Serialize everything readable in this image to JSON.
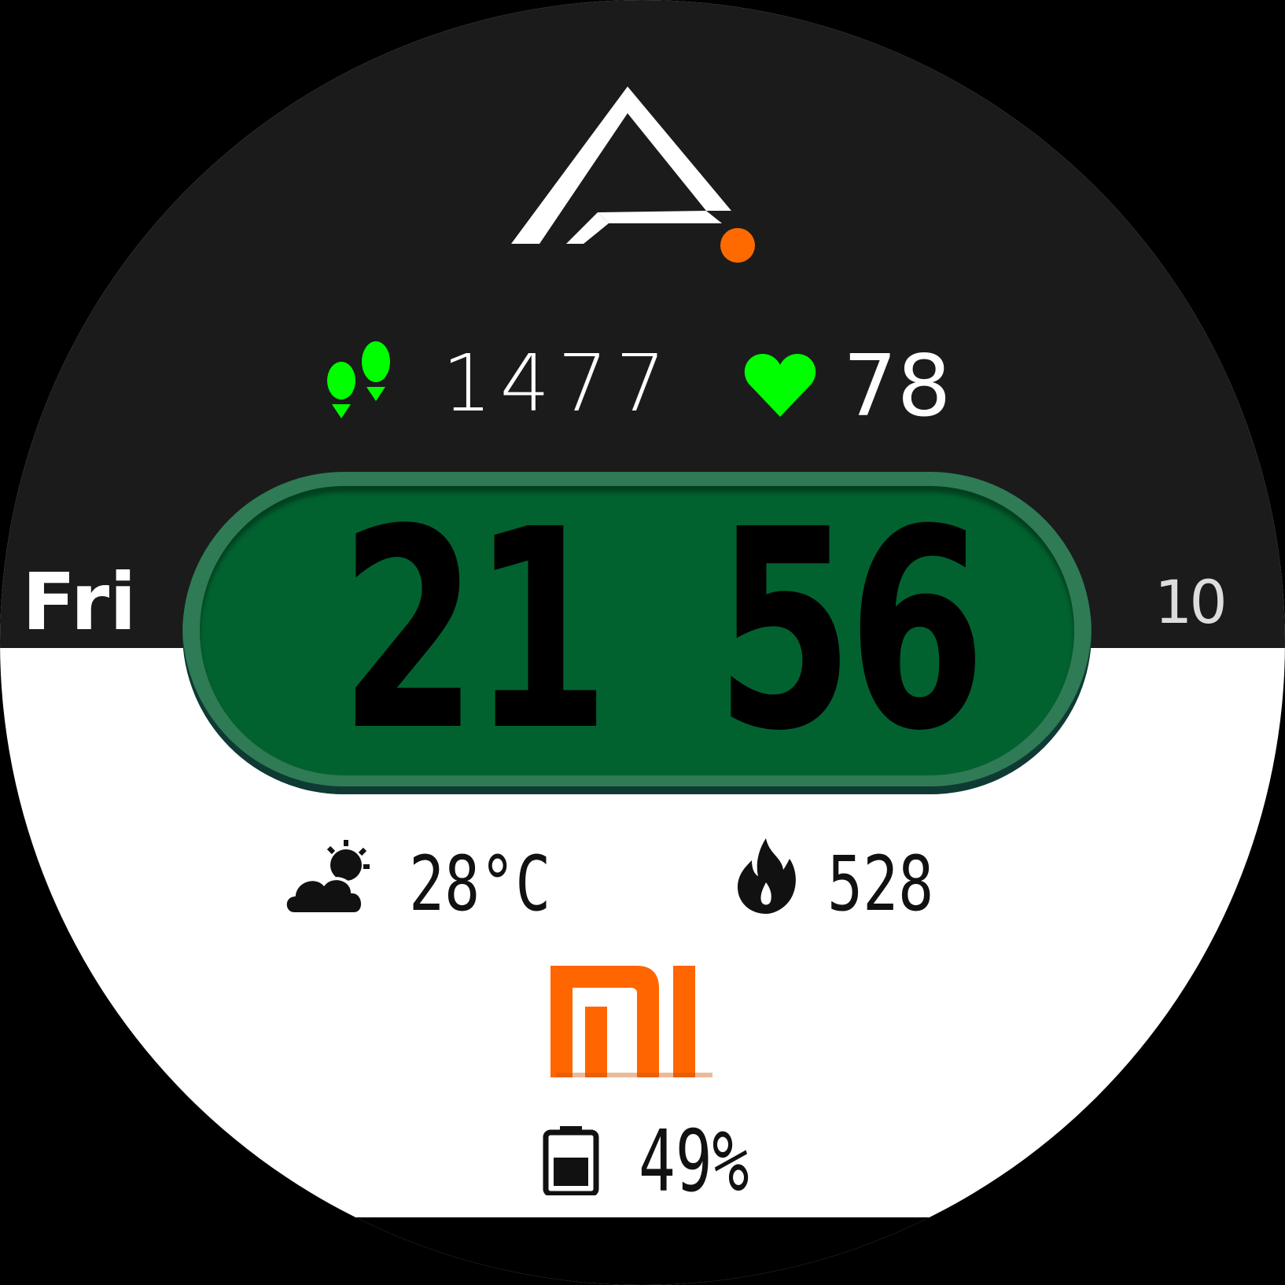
{
  "watch_face": {
    "brand_logo": "amazfit-logo-icon",
    "steps": {
      "icon": "footsteps-icon",
      "value": "1477"
    },
    "heart_rate": {
      "icon": "heart-icon",
      "value": "78"
    },
    "day": "Fri",
    "date": "10",
    "time": {
      "hours": "21",
      "minutes": "56"
    },
    "weather": {
      "icon": "cloud-sun-icon",
      "value": "28°C"
    },
    "calories": {
      "icon": "flame-icon",
      "value": "528"
    },
    "maker_logo": "mi-logo-icon",
    "battery": {
      "icon": "battery-icon",
      "value": "49%",
      "level": 0.49
    },
    "colors": {
      "top_background": "#1b1b1b",
      "bottom_background": "#ffffff",
      "accent_green": "#00ff00",
      "pill_green": "#02622f",
      "pill_border": "#2f7b55",
      "logo_orange": "#ff6a00"
    }
  }
}
